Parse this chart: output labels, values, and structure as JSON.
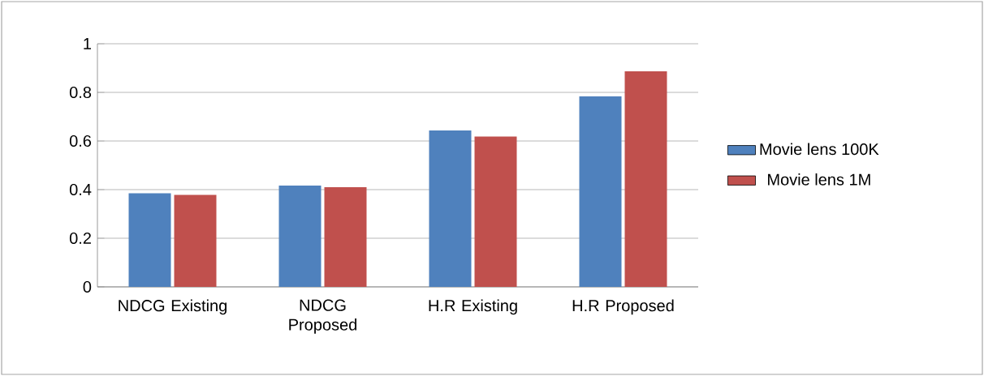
{
  "chart_data": {
    "type": "bar",
    "categories": [
      "NDCG Existing",
      "NDCG Proposed",
      "H.R Existing",
      "H.R Proposed"
    ],
    "series": [
      {
        "name": "Movie lens 100K",
        "color": "#4f81bd",
        "values": [
          0.385,
          0.417,
          0.643,
          0.784
        ]
      },
      {
        "name": "Movie lens 1M",
        "color": "#c0504d",
        "values": [
          0.378,
          0.41,
          0.618,
          0.887
        ]
      }
    ],
    "ylim": [
      0,
      1
    ],
    "yticks": [
      0,
      0.2,
      0.4,
      0.6,
      0.8,
      1
    ],
    "grid": "y",
    "legend": "right"
  }
}
